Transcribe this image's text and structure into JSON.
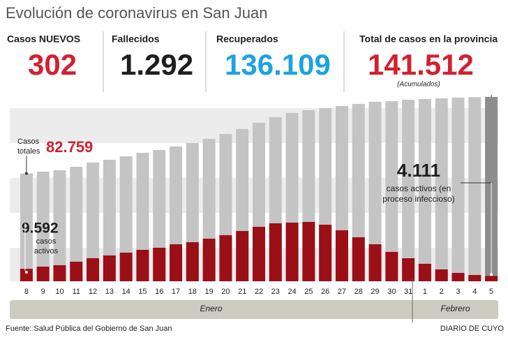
{
  "title": "Evolución de coronavirus en San Juan",
  "stats": [
    {
      "label": "Casos NUEVOS",
      "value": "302",
      "color": "#d3202f"
    },
    {
      "label": "Fallecidos",
      "value": "1.292",
      "color": "#1e1e1e"
    },
    {
      "label": "Recuperados",
      "value": "136.109",
      "color": "#1ea3dc"
    },
    {
      "label": "Total de casos en la provincia",
      "value": "141.512",
      "color": "#d3202f",
      "note": "(Acumulados)"
    }
  ],
  "chart_data": {
    "type": "bar",
    "categories": [
      "8",
      "9",
      "10",
      "11",
      "12",
      "13",
      "14",
      "15",
      "16",
      "17",
      "18",
      "19",
      "20",
      "21",
      "22",
      "23",
      "24",
      "25",
      "26",
      "27",
      "28",
      "29",
      "30",
      "31",
      "1",
      "2",
      "3",
      "4",
      "5"
    ],
    "months": [
      "Enero",
      "Febrero"
    ],
    "ylim": [
      0,
      150000
    ],
    "series": [
      {
        "name": [
          "Casos",
          "totales"
        ],
        "color": "#c4c4c4",
        "highlight_color": "#8d8d8d",
        "values": [
          82759,
          84150,
          85220,
          87900,
          91120,
          93260,
          95940,
          98620,
          100770,
          103450,
          106130,
          109340,
          113100,
          116850,
          121670,
          125960,
          129180,
          131320,
          132930,
          134540,
          136140,
          137750,
          138290,
          139360,
          139900,
          140430,
          140970,
          141300,
          141512
        ],
        "value_labels": [
          "82.759",
          null,
          null,
          null,
          null,
          null,
          null,
          null,
          null,
          null,
          null,
          null,
          null,
          null,
          null,
          null,
          null,
          null,
          null,
          null,
          null,
          null,
          null,
          null,
          null,
          null,
          null,
          null,
          null
        ]
      },
      {
        "name": [
          "casos",
          "activos"
        ],
        "color": "#9b0f17",
        "values": [
          9592,
          11260,
          12330,
          15010,
          17690,
          19830,
          21980,
          24120,
          25730,
          28410,
          30020,
          32700,
          35380,
          38590,
          41810,
          44490,
          45020,
          45560,
          43420,
          39130,
          33770,
          28410,
          22510,
          17690,
          13400,
          9110,
          6430,
          4820,
          4111
        ],
        "value_labels": [
          "9.592",
          null,
          null,
          null,
          null,
          null,
          null,
          null,
          null,
          null,
          null,
          null,
          null,
          null,
          null,
          null,
          null,
          null,
          null,
          null,
          null,
          null,
          null,
          null,
          null,
          null,
          null,
          null,
          "4.111"
        ],
        "last_note": [
          "casos activos (en",
          "proceso infeccioso)"
        ]
      }
    ]
  },
  "source": "Fuente: Salud Pública del Gobierno de San Juan",
  "brand": "DIARIO DE CUYO"
}
